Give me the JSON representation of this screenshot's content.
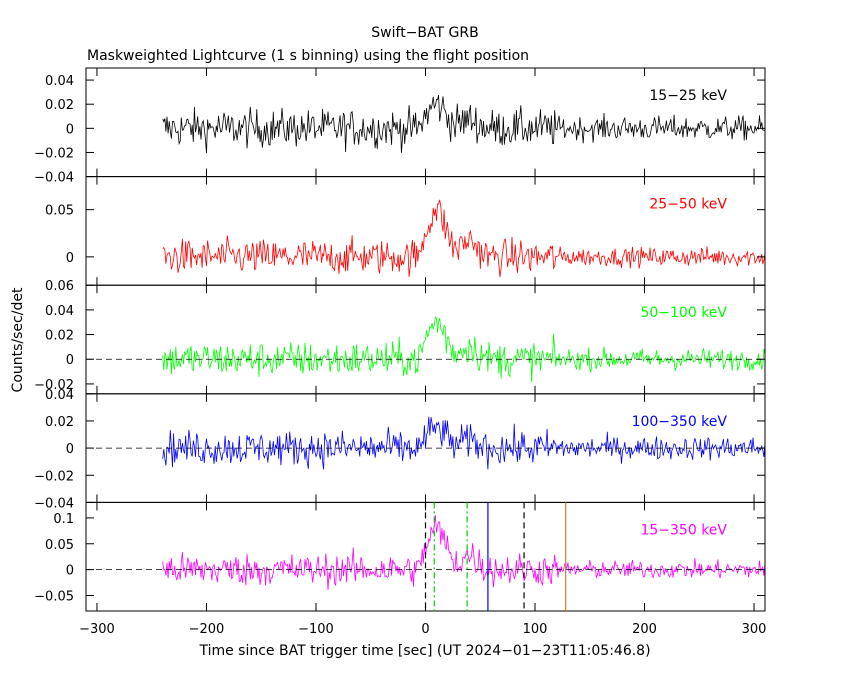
{
  "chart_data": {
    "type": "line",
    "title": "Swift−BAT GRB",
    "subtitle": "Maskweighted Lightcurve (1 s binning) using the flight position",
    "xlabel": "Time since BAT trigger time [sec] (UT 2024−01−23T11:05:46.8)",
    "ylabel": "Counts/sec/det",
    "xlim": [
      -310,
      310
    ],
    "xticks": [
      -300,
      -200,
      -100,
      0,
      100,
      200,
      300
    ],
    "xtick_labels": [
      "−300",
      "−200",
      "−100",
      "0",
      "100",
      "200",
      "300"
    ],
    "data_range": [
      -240,
      310
    ],
    "binning_s": 1,
    "panels": [
      {
        "name": "15−25 keV",
        "color": "#000000",
        "ylim": [
          -0.04,
          0.05
        ],
        "yticks": [
          -0.04,
          -0.02,
          0,
          0.02,
          0.04
        ],
        "ytick_labels": [
          "−0.04",
          "−0.02",
          "0",
          "0.02",
          "0.04"
        ],
        "noise_pre": 0.011,
        "noise_post": 0.007,
        "peak": 0.02,
        "zero_line": false
      },
      {
        "name": "25−50 keV",
        "color": "#ff0000",
        "ylim": [
          -0.03,
          0.085
        ],
        "yticks": [
          0,
          0.05
        ],
        "ytick_labels": [
          "0",
          "0.05"
        ],
        "noise_pre": 0.013,
        "noise_post": 0.007,
        "peak": 0.05,
        "zero_line": false
      },
      {
        "name": "50−100 keV",
        "color": "#00ff00",
        "ylim": [
          -0.028,
          0.06
        ],
        "yticks": [
          -0.02,
          0,
          0.02,
          0.04,
          0.06
        ],
        "ytick_labels": [
          "−0.02",
          "0",
          "0.02",
          "0.04",
          "0.06"
        ],
        "noise_pre": 0.01,
        "noise_post": 0.006,
        "peak": 0.03,
        "zero_line": true
      },
      {
        "name": "100−350 keV",
        "color": "#0000ff",
        "ylim": [
          -0.04,
          0.04
        ],
        "yticks": [
          -0.04,
          -0.02,
          0,
          0.02,
          0.04
        ],
        "ytick_labels": [
          "−0.04",
          "−0.02",
          "0",
          "0.02",
          "0.04"
        ],
        "noise_pre": 0.009,
        "noise_post": 0.006,
        "peak": 0.015,
        "zero_line": true
      },
      {
        "name": "15−350 keV",
        "color": "#ff00ff",
        "ylim": [
          -0.08,
          0.13
        ],
        "yticks": [
          -0.05,
          0,
          0.05,
          0.1
        ],
        "ytick_labels": [
          "−0.05",
          "0",
          "0.05",
          "0.1"
        ],
        "noise_pre": 0.022,
        "noise_post": 0.012,
        "peak": 0.08,
        "zero_line": true
      }
    ],
    "markers": [
      {
        "x": 0,
        "color": "#000000",
        "style": "dashed"
      },
      {
        "x": 8,
        "color": "#00cc00",
        "style": "dashdot"
      },
      {
        "x": 38,
        "color": "#00cc00",
        "style": "dashdot"
      },
      {
        "x": 57,
        "color": "#0000ff",
        "style": "solid"
      },
      {
        "x": 90,
        "color": "#000000",
        "style": "dashed"
      },
      {
        "x": 128,
        "color": "#d08020",
        "style": "solid"
      }
    ]
  }
}
